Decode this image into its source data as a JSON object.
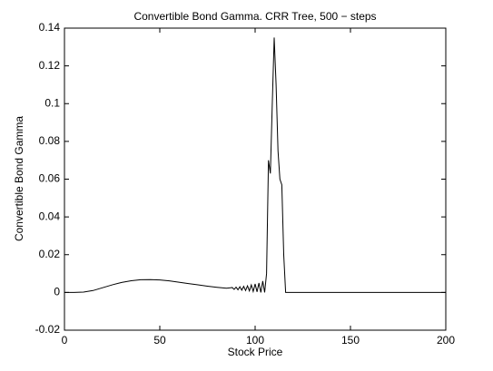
{
  "chart_data": {
    "type": "line",
    "title": "Convertible Bond Gamma. CRR Tree, 500 − steps",
    "x_label": "Stock Price",
    "y_label": "Convertible Bond Gamma",
    "x": [
      0,
      5,
      10,
      15,
      20,
      25,
      30,
      35,
      40,
      45,
      50,
      55,
      60,
      65,
      70,
      75,
      80,
      85,
      88,
      89,
      90,
      91,
      92,
      93,
      94,
      95,
      96,
      97,
      98,
      99,
      100,
      101,
      102,
      103,
      104,
      105,
      106,
      107,
      108,
      109,
      110,
      111,
      112,
      113,
      114,
      115,
      116,
      120,
      200
    ],
    "series": [
      {
        "color": "#000000",
        "values": [
          0,
          0,
          0.0002,
          0.001,
          0.0025,
          0.004,
          0.0053,
          0.0062,
          0.0067,
          0.0068,
          0.0066,
          0.0061,
          0.0054,
          0.0047,
          0.004,
          0.0033,
          0.0027,
          0.0022,
          0.0026,
          0.0016,
          0.0028,
          0.0014,
          0.003,
          0.0012,
          0.0032,
          0.001,
          0.0035,
          0.0008,
          0.004,
          0.0005,
          0.0045,
          0.0003,
          0.005,
          0,
          0.006,
          0,
          0.01,
          0.07,
          0.063,
          0.1,
          0.135,
          0.11,
          0.075,
          0.06,
          0.057,
          0.02,
          0,
          0,
          0
        ]
      }
    ],
    "xlim": [
      0,
      200
    ],
    "xticks": [
      0,
      50,
      100,
      150,
      200
    ],
    "ylim": [
      -0.02,
      0.14
    ],
    "yticks": [
      -0.02,
      0,
      0.02,
      0.04,
      0.06,
      0.08,
      0.1,
      0.12,
      0.14
    ]
  }
}
